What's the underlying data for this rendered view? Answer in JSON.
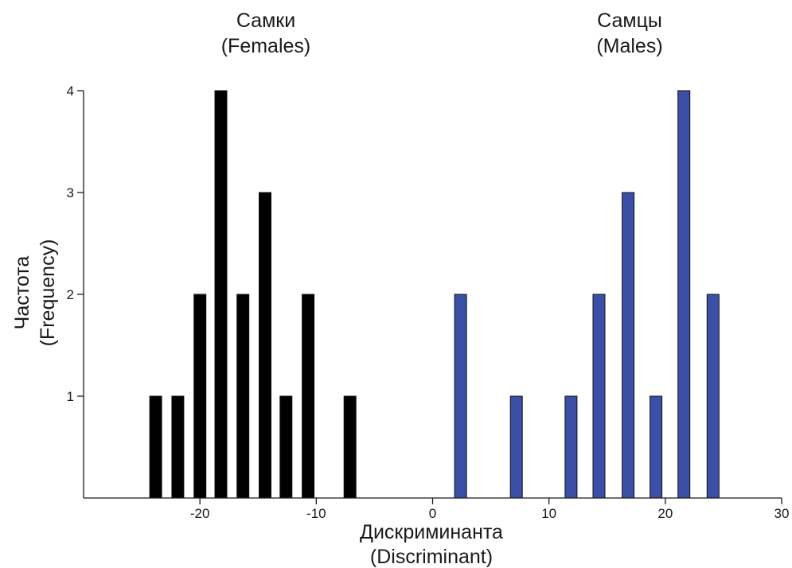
{
  "chart_data": {
    "type": "bar",
    "title": "",
    "xlabel": [
      "Дискриминанта",
      "(Discriminant)"
    ],
    "ylabel": [
      "Частота",
      "(Frequency)"
    ],
    "xlim": [
      -30,
      30
    ],
    "ylim": [
      0,
      4
    ],
    "xticks": [
      -20,
      -10,
      0,
      10,
      20,
      30
    ],
    "yticks": [
      1,
      2,
      3,
      4
    ],
    "grid": false,
    "group_labels": [
      {
        "lines": [
          "Самки",
          "(Females)"
        ],
        "x": -14.5
      },
      {
        "lines": [
          "Самцы",
          "(Males)"
        ],
        "x": 17
      }
    ],
    "series": [
      {
        "color": "#000000",
        "x": [
          -23.8,
          -21.9,
          -20.0,
          -18.2,
          -16.3,
          -14.4,
          -12.6,
          -10.7,
          -7.1
        ],
        "values": [
          1,
          1,
          2,
          4,
          2,
          3,
          1,
          2,
          1
        ]
      },
      {
        "color": "#3a4fa8",
        "x": [
          2.4,
          7.2,
          11.9,
          14.3,
          16.8,
          19.2,
          21.6,
          24.1
        ],
        "values": [
          2,
          1,
          1,
          2,
          3,
          1,
          4,
          2
        ]
      }
    ]
  }
}
